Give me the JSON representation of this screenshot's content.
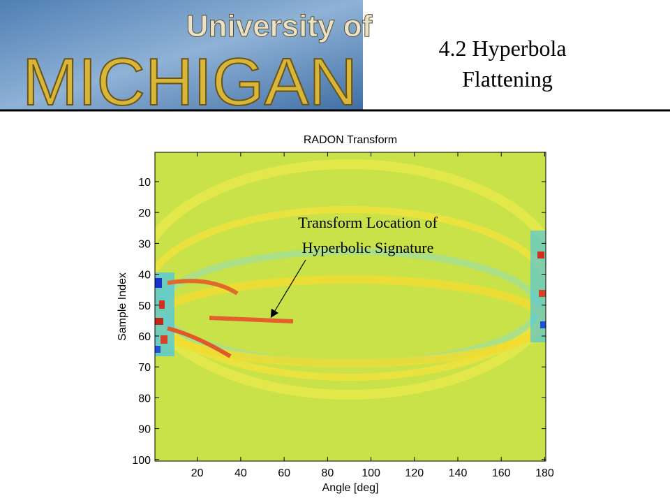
{
  "header": {
    "logo_lines": [
      "University of",
      "MICHIGAN"
    ],
    "title_lines": [
      "4.2 Hyperbola",
      "Flattening"
    ]
  },
  "chart_data": {
    "type": "heatmap",
    "title": "RADON Transform",
    "xlabel": "Angle [deg]",
    "ylabel": "Sample Index",
    "xlim": [
      0.5,
      180.5
    ],
    "xticks": [
      20,
      40,
      60,
      80,
      100,
      120,
      140,
      160,
      180
    ],
    "ylim": [
      0.5,
      100.5
    ],
    "y_reversed": true,
    "yticks": [
      10,
      20,
      30,
      40,
      50,
      60,
      70,
      80,
      90,
      100
    ],
    "annotation": [
      "Transform Location of",
      "Hyperbolic Signature"
    ]
  }
}
